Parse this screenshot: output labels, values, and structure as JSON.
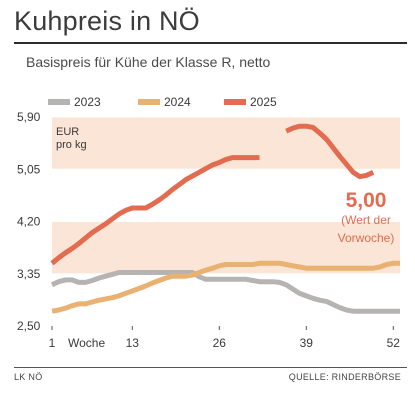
{
  "title": "Kuhpreis in NÖ",
  "subtitle": "Basispreis für Kühe der Klasse R, netto",
  "footer": {
    "left": "LK NÖ",
    "right": "QUELLE: RINDERBÖRSE"
  },
  "colors": {
    "2023": "#b6b3b3",
    "2024": "#e9b273",
    "2025": "#e36b4f",
    "band": "#fbe5d6"
  },
  "chart_data": {
    "type": "line",
    "title": "Kuhpreis in NÖ",
    "subtitle": "Basispreis für Kühe der Klasse R, netto",
    "ylabel": "EUR pro kg",
    "xlabel": "Woche",
    "xlim": [
      1,
      53
    ],
    "ylim": [
      2.5,
      5.9
    ],
    "yticks": [
      2.5,
      3.35,
      4.2,
      5.05,
      5.9
    ],
    "ytick_labels": [
      "2,50",
      "3,35",
      "4,20",
      "5,05",
      "5,90"
    ],
    "xticks": [
      1,
      13,
      26,
      39,
      52
    ],
    "xtick_labels": [
      "1",
      "13",
      "26",
      "39",
      "52"
    ],
    "legend": "top",
    "annotation": {
      "value": "5,00",
      "note": "(Wert der Vorwoche)"
    },
    "series": [
      {
        "name": "2023",
        "x": [
          1,
          2,
          3,
          4,
          5,
          6,
          7,
          8,
          9,
          10,
          11,
          12,
          13,
          14,
          15,
          16,
          17,
          18,
          19,
          20,
          21,
          22,
          23,
          24,
          25,
          26,
          27,
          28,
          29,
          30,
          31,
          32,
          33,
          34,
          35,
          36,
          37,
          38,
          39,
          40,
          41,
          42,
          43,
          44,
          45,
          46,
          47,
          48,
          49,
          50,
          51,
          52,
          53
        ],
        "y": [
          3.17,
          3.22,
          3.25,
          3.25,
          3.21,
          3.21,
          3.24,
          3.28,
          3.31,
          3.34,
          3.37,
          3.37,
          3.37,
          3.37,
          3.37,
          3.37,
          3.37,
          3.37,
          3.37,
          3.37,
          3.37,
          3.37,
          3.3,
          3.26,
          3.26,
          3.26,
          3.26,
          3.26,
          3.26,
          3.26,
          3.24,
          3.22,
          3.22,
          3.22,
          3.21,
          3.17,
          3.1,
          3.03,
          2.99,
          2.95,
          2.92,
          2.9,
          2.85,
          2.8,
          2.76,
          2.74,
          2.74,
          2.74,
          2.74,
          2.74,
          2.74,
          2.74,
          2.74
        ]
      },
      {
        "name": "2024",
        "x": [
          1,
          2,
          3,
          4,
          5,
          6,
          7,
          8,
          9,
          10,
          11,
          12,
          13,
          14,
          15,
          16,
          17,
          18,
          19,
          20,
          21,
          22,
          23,
          24,
          25,
          26,
          27,
          28,
          29,
          30,
          31,
          32,
          33,
          34,
          35,
          36,
          37,
          38,
          39,
          40,
          41,
          42,
          43,
          44,
          45,
          46,
          47,
          48,
          49,
          50,
          51,
          52,
          53
        ],
        "y": [
          2.74,
          2.76,
          2.79,
          2.83,
          2.86,
          2.86,
          2.89,
          2.92,
          2.94,
          2.96,
          2.99,
          3.03,
          3.07,
          3.11,
          3.15,
          3.2,
          3.24,
          3.28,
          3.31,
          3.31,
          3.31,
          3.33,
          3.37,
          3.41,
          3.44,
          3.48,
          3.5,
          3.5,
          3.5,
          3.5,
          3.5,
          3.52,
          3.52,
          3.52,
          3.52,
          3.5,
          3.48,
          3.46,
          3.44,
          3.44,
          3.44,
          3.44,
          3.44,
          3.44,
          3.44,
          3.44,
          3.44,
          3.44,
          3.44,
          3.46,
          3.5,
          3.52,
          3.52
        ]
      },
      {
        "name": "2025",
        "x": [
          1,
          2,
          3,
          4,
          5,
          6,
          7,
          8,
          9,
          10,
          11,
          12,
          13,
          14,
          15,
          16,
          17,
          18,
          19,
          20,
          21,
          22,
          23,
          24,
          25,
          26,
          27,
          28,
          29,
          30,
          31,
          32,
          33,
          34,
          35,
          36,
          37,
          38,
          39,
          40,
          41,
          42,
          43,
          44,
          45,
          46,
          47,
          48,
          49
        ],
        "y": [
          3.52,
          3.61,
          3.69,
          3.76,
          3.84,
          3.93,
          4.02,
          4.09,
          4.16,
          4.24,
          4.32,
          4.38,
          4.42,
          4.42,
          4.42,
          4.48,
          4.55,
          4.63,
          4.72,
          4.8,
          4.88,
          4.94,
          5.0,
          5.06,
          5.12,
          5.16,
          5.21,
          5.24,
          5.24,
          5.24,
          5.24,
          5.24,
          null,
          null,
          null,
          5.67,
          5.72,
          5.75,
          5.75,
          5.73,
          5.64,
          5.54,
          5.4,
          5.26,
          5.13,
          5.0,
          4.93,
          4.95,
          5.0
        ]
      }
    ]
  }
}
